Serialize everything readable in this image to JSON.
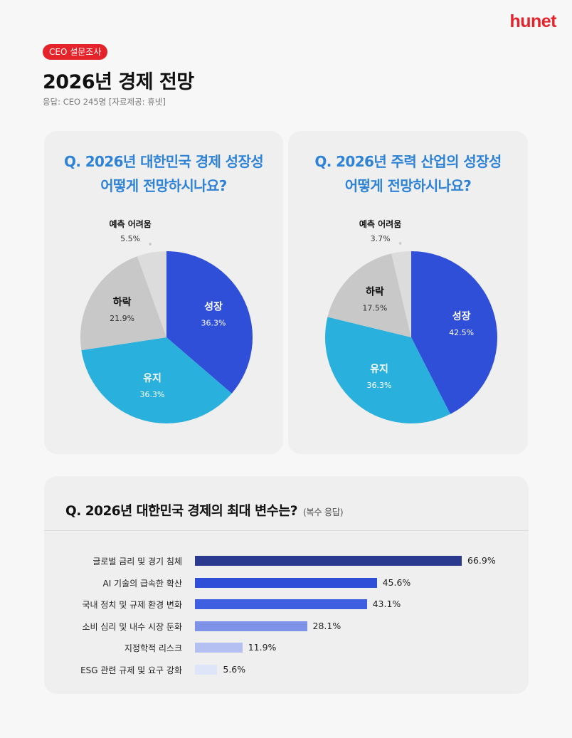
{
  "header": {
    "logo": "hunet",
    "badge": "CEO 설문조사",
    "title": "2026년 경제 전망",
    "subtitle": "응답: CEO 245명 [자료제공: 휴넷]"
  },
  "colors": {
    "brand_red": "#e5232b",
    "question_blue": "#2f83d6",
    "growth": "#2f4fd8",
    "maintain": "#2ab0dc",
    "decline": "#c8c8c8",
    "uncertain": "#dcdcdc"
  },
  "chart_data": [
    {
      "type": "pie",
      "title_lines": [
        "Q. 2026년 대한민국 경제 성장성",
        "어떻게 전망하시나요?"
      ],
      "slices": [
        {
          "label": "성장",
          "value": 36.3,
          "display": "36.3%"
        },
        {
          "label": "유지",
          "value": 36.3,
          "display": "36.3%"
        },
        {
          "label": "하락",
          "value": 21.9,
          "display": "21.9%"
        },
        {
          "label": "예측 어려움",
          "value": 5.5,
          "display": "5.5%"
        }
      ]
    },
    {
      "type": "pie",
      "title_lines": [
        "Q. 2026년 주력 산업의 성장성",
        "어떻게 전망하시나요?"
      ],
      "slices": [
        {
          "label": "성장",
          "value": 42.5,
          "display": "42.5%"
        },
        {
          "label": "유지",
          "value": 36.3,
          "display": "36.3%"
        },
        {
          "label": "하락",
          "value": 17.5,
          "display": "17.5%"
        },
        {
          "label": "예측 어려움",
          "value": 3.7,
          "display": "3.7%"
        }
      ]
    },
    {
      "type": "bar",
      "title": "Q. 2026년 대한민국 경제의 최대 변수는?",
      "note": "(복수 응답)",
      "categories": [
        "글로벌 금리 및 경기 침체",
        "AI 기술의 급속한 확산",
        "국내 정치 및 규제 환경 변화",
        "소비 심리 및 내수 시장 둔화",
        "지정학적 리스크",
        "ESG 관련 규제 및 요구 강화"
      ],
      "values": [
        66.9,
        45.6,
        43.1,
        28.1,
        11.9,
        5.6
      ],
      "displays": [
        "66.9%",
        "45.6%",
        "43.1%",
        "28.1%",
        "11.9%",
        "5.6%"
      ],
      "bar_colors": [
        "#2b3a8f",
        "#2f4fd8",
        "#3d5fe0",
        "#7f92ea",
        "#b4c0f2",
        "#dfe5f9"
      ]
    }
  ]
}
